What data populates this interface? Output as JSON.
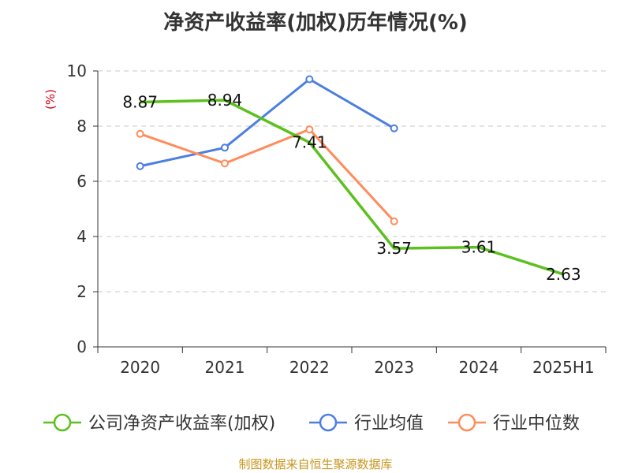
{
  "title": "净资产收益率(加权)历年情况(%)",
  "source": "制图数据来自恒生聚源数据库",
  "chart_data": {
    "type": "line",
    "title": "净资产收益率(加权)历年情况(%)",
    "ylabel": "(%)",
    "ylim": [
      0,
      10
    ],
    "yticks": [
      0,
      2,
      4,
      6,
      8,
      10
    ],
    "grid": true,
    "legend_position": "bottom",
    "categories": [
      "2020",
      "2021",
      "2022",
      "2023",
      "2024",
      "2025H1"
    ],
    "series": [
      {
        "name": "公司净资产收益率(加权)",
        "color": "#5cc01e",
        "values": [
          8.87,
          8.94,
          7.41,
          3.57,
          3.61,
          2.63
        ],
        "labels": [
          "8.87",
          "8.94",
          "7.41",
          "3.57",
          "3.61",
          "2.63"
        ]
      },
      {
        "name": "行业均值",
        "color": "#4c7fe0",
        "values": [
          6.55,
          7.22,
          9.7,
          7.92,
          null,
          null
        ]
      },
      {
        "name": "行业中位数",
        "color": "#ff8c5a",
        "values": [
          7.72,
          6.65,
          7.88,
          4.55,
          null,
          null
        ]
      }
    ]
  }
}
